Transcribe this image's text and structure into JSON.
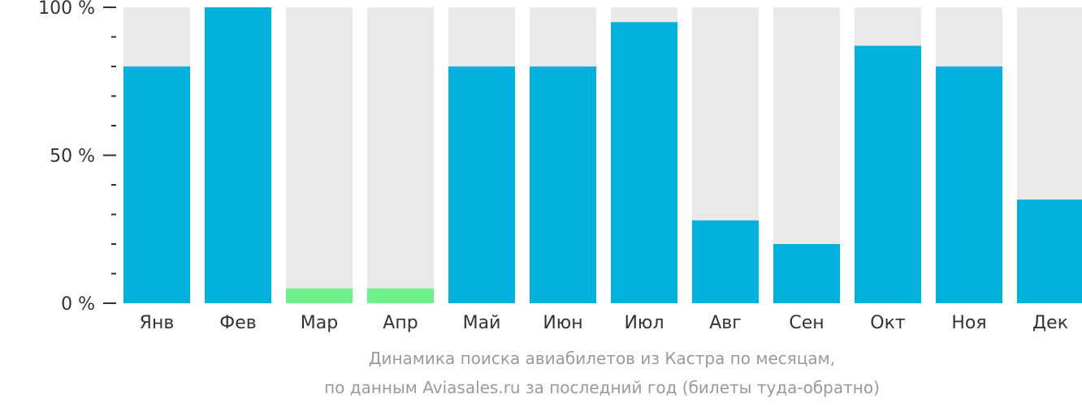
{
  "chart_data": {
    "type": "bar",
    "categories": [
      "Янв",
      "Фев",
      "Мар",
      "Апр",
      "Май",
      "Июн",
      "Июл",
      "Авг",
      "Сен",
      "Окт",
      "Ноя",
      "Дек"
    ],
    "values": [
      80,
      100,
      5,
      5,
      80,
      80,
      95,
      28,
      20,
      87,
      80,
      35
    ],
    "highlight": [
      false,
      false,
      true,
      true,
      false,
      false,
      false,
      false,
      false,
      false,
      false,
      false
    ],
    "ylim": [
      0,
      100
    ],
    "y_tick_labels": [
      "0 %",
      "50 %",
      "100 %"
    ],
    "y_tick_values": [
      0,
      50,
      100
    ],
    "grid": false,
    "colors": {
      "bar": "#00b0dd",
      "highlight": "#6ef08a",
      "background_bar": "#e9e9e9",
      "axis": "#333333"
    }
  },
  "caption": {
    "line1": "Динамика поиска авиабилетов из Кастра по месяцам,",
    "line2": "по данным Aviasales.ru за последний год (билеты туда-обратно)"
  }
}
